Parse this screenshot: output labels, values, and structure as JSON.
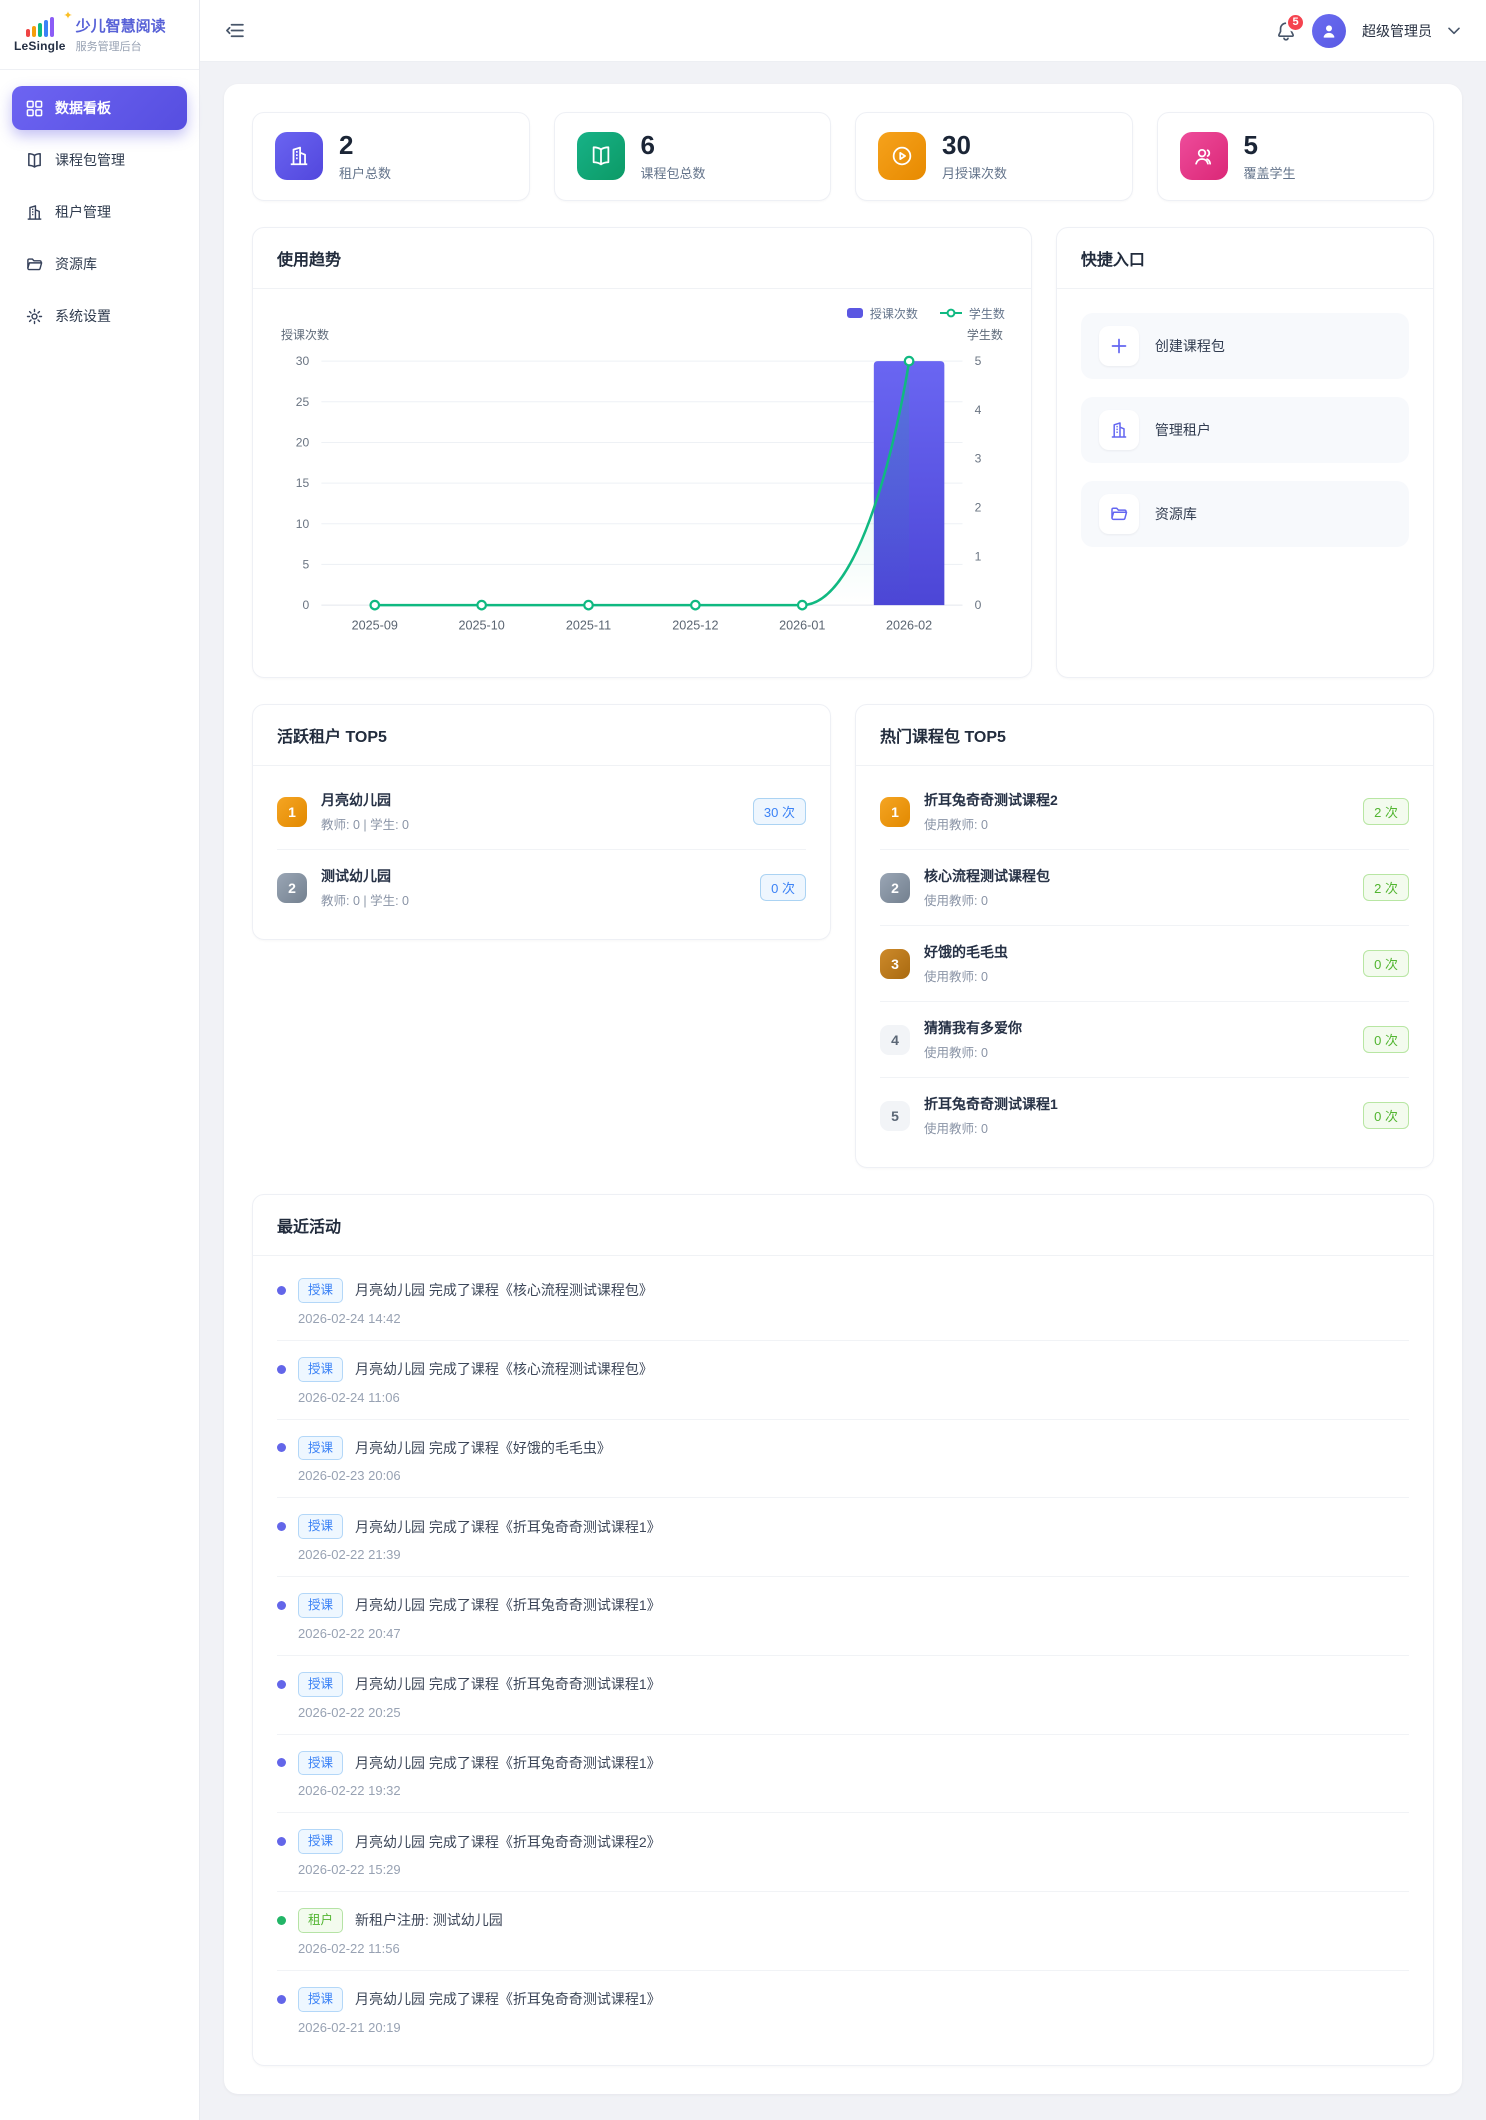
{
  "app": {
    "brand_name": "LeSingle",
    "title": "少儿智慧阅读",
    "subtitle": "服务管理后台"
  },
  "header": {
    "notification_count": "5",
    "user_name": "超级管理员"
  },
  "sidebar": {
    "items": [
      {
        "label": "数据看板",
        "active": true
      },
      {
        "label": "课程包管理",
        "active": false
      },
      {
        "label": "租户管理",
        "active": false
      },
      {
        "label": "资源库",
        "active": false
      },
      {
        "label": "系统设置",
        "active": false
      }
    ]
  },
  "stats": [
    {
      "value": "2",
      "label": "租户总数",
      "icon": "building-icon",
      "color": "#5a55e0"
    },
    {
      "value": "6",
      "label": "课程包总数",
      "icon": "open-book-icon",
      "color": "#12a273"
    },
    {
      "value": "30",
      "label": "月授课次数",
      "icon": "play-circle-icon",
      "color": "#f09a0c"
    },
    {
      "value": "5",
      "label": "覆盖学生",
      "icon": "users-icon",
      "color": "#e63b8f"
    }
  ],
  "usage_trend": {
    "title": "使用趋势",
    "chart_data": {
      "type": "bar+line",
      "categories": [
        "2025-09",
        "2025-10",
        "2025-11",
        "2025-12",
        "2026-01",
        "2026-02"
      ],
      "series": [
        {
          "name": "授课次数",
          "type": "bar",
          "axis": "left",
          "color": "#5b57e2",
          "values": [
            0,
            0,
            0,
            0,
            0,
            30
          ]
        },
        {
          "name": "学生数",
          "type": "line",
          "axis": "right",
          "color": "#10b981",
          "values": [
            0,
            0,
            0,
            0,
            0,
            5
          ]
        }
      ],
      "left_axis": {
        "label": "授课次数",
        "min": 0,
        "max": 30,
        "tick_step": 5
      },
      "right_axis": {
        "label": "学生数",
        "min": 0,
        "max": 5,
        "tick_step": 1
      },
      "grid": true,
      "legend_position": "top-right",
      "bar_gradient": [
        "#6a66f2",
        "#4c46d6"
      ],
      "area_fill_rgb": "16,185,129"
    }
  },
  "quick_entry": {
    "title": "快捷入口",
    "items": [
      {
        "label": "创建课程包",
        "icon": "plus-icon"
      },
      {
        "label": "管理租户",
        "icon": "building-icon"
      },
      {
        "label": "资源库",
        "icon": "folder-icon"
      }
    ]
  },
  "active_tenants": {
    "title": "活跃租户 TOP5",
    "items": [
      {
        "rank": "1",
        "name": "月亮幼儿园",
        "meta": "教师: 0 | 学生: 0",
        "count": "30 次"
      },
      {
        "rank": "2",
        "name": "测试幼儿园",
        "meta": "教师: 0 | 学生: 0",
        "count": "0 次"
      }
    ]
  },
  "hot_packages": {
    "title": "热门课程包 TOP5",
    "items": [
      {
        "rank": "1",
        "name": "折耳兔奇奇测试课程2",
        "meta": "使用教师: 0",
        "count": "2 次"
      },
      {
        "rank": "2",
        "name": "核心流程测试课程包",
        "meta": "使用教师: 0",
        "count": "2 次"
      },
      {
        "rank": "3",
        "name": "好饿的毛毛虫",
        "meta": "使用教师: 0",
        "count": "0 次"
      },
      {
        "rank": "4",
        "name": "猜猜我有多爱你",
        "meta": "使用教师: 0",
        "count": "0 次"
      },
      {
        "rank": "5",
        "name": "折耳兔奇奇测试课程1",
        "meta": "使用教师: 0",
        "count": "0 次"
      }
    ]
  },
  "recent_activities": {
    "title": "最近活动",
    "items": [
      {
        "type": "teach",
        "tag": "授课",
        "text": "月亮幼儿园 完成了课程《核心流程测试课程包》",
        "time": "2026-02-24 14:42"
      },
      {
        "type": "teach",
        "tag": "授课",
        "text": "月亮幼儿园 完成了课程《核心流程测试课程包》",
        "time": "2026-02-24 11:06"
      },
      {
        "type": "teach",
        "tag": "授课",
        "text": "月亮幼儿园 完成了课程《好饿的毛毛虫》",
        "time": "2026-02-23 20:06"
      },
      {
        "type": "teach",
        "tag": "授课",
        "text": "月亮幼儿园 完成了课程《折耳兔奇奇测试课程1》",
        "time": "2026-02-22 21:39"
      },
      {
        "type": "teach",
        "tag": "授课",
        "text": "月亮幼儿园 完成了课程《折耳兔奇奇测试课程1》",
        "time": "2026-02-22 20:47"
      },
      {
        "type": "teach",
        "tag": "授课",
        "text": "月亮幼儿园 完成了课程《折耳兔奇奇测试课程1》",
        "time": "2026-02-22 20:25"
      },
      {
        "type": "teach",
        "tag": "授课",
        "text": "月亮幼儿园 完成了课程《折耳兔奇奇测试课程1》",
        "time": "2026-02-22 19:32"
      },
      {
        "type": "teach",
        "tag": "授课",
        "text": "月亮幼儿园 完成了课程《折耳兔奇奇测试课程2》",
        "time": "2026-02-22 15:29"
      },
      {
        "type": "tenant",
        "tag": "租户",
        "text": "新租户注册: 测试幼儿园",
        "time": "2026-02-22 11:56"
      },
      {
        "type": "teach",
        "tag": "授课",
        "text": "月亮幼儿园 完成了课程《折耳兔奇奇测试课程1》",
        "time": "2026-02-21 20:19"
      }
    ]
  },
  "colors": {
    "primary": "#5b57e2",
    "success": "#10b981",
    "warning": "#f59e0b",
    "danger": "#f5434f",
    "info_blue": "#3b82f6"
  }
}
